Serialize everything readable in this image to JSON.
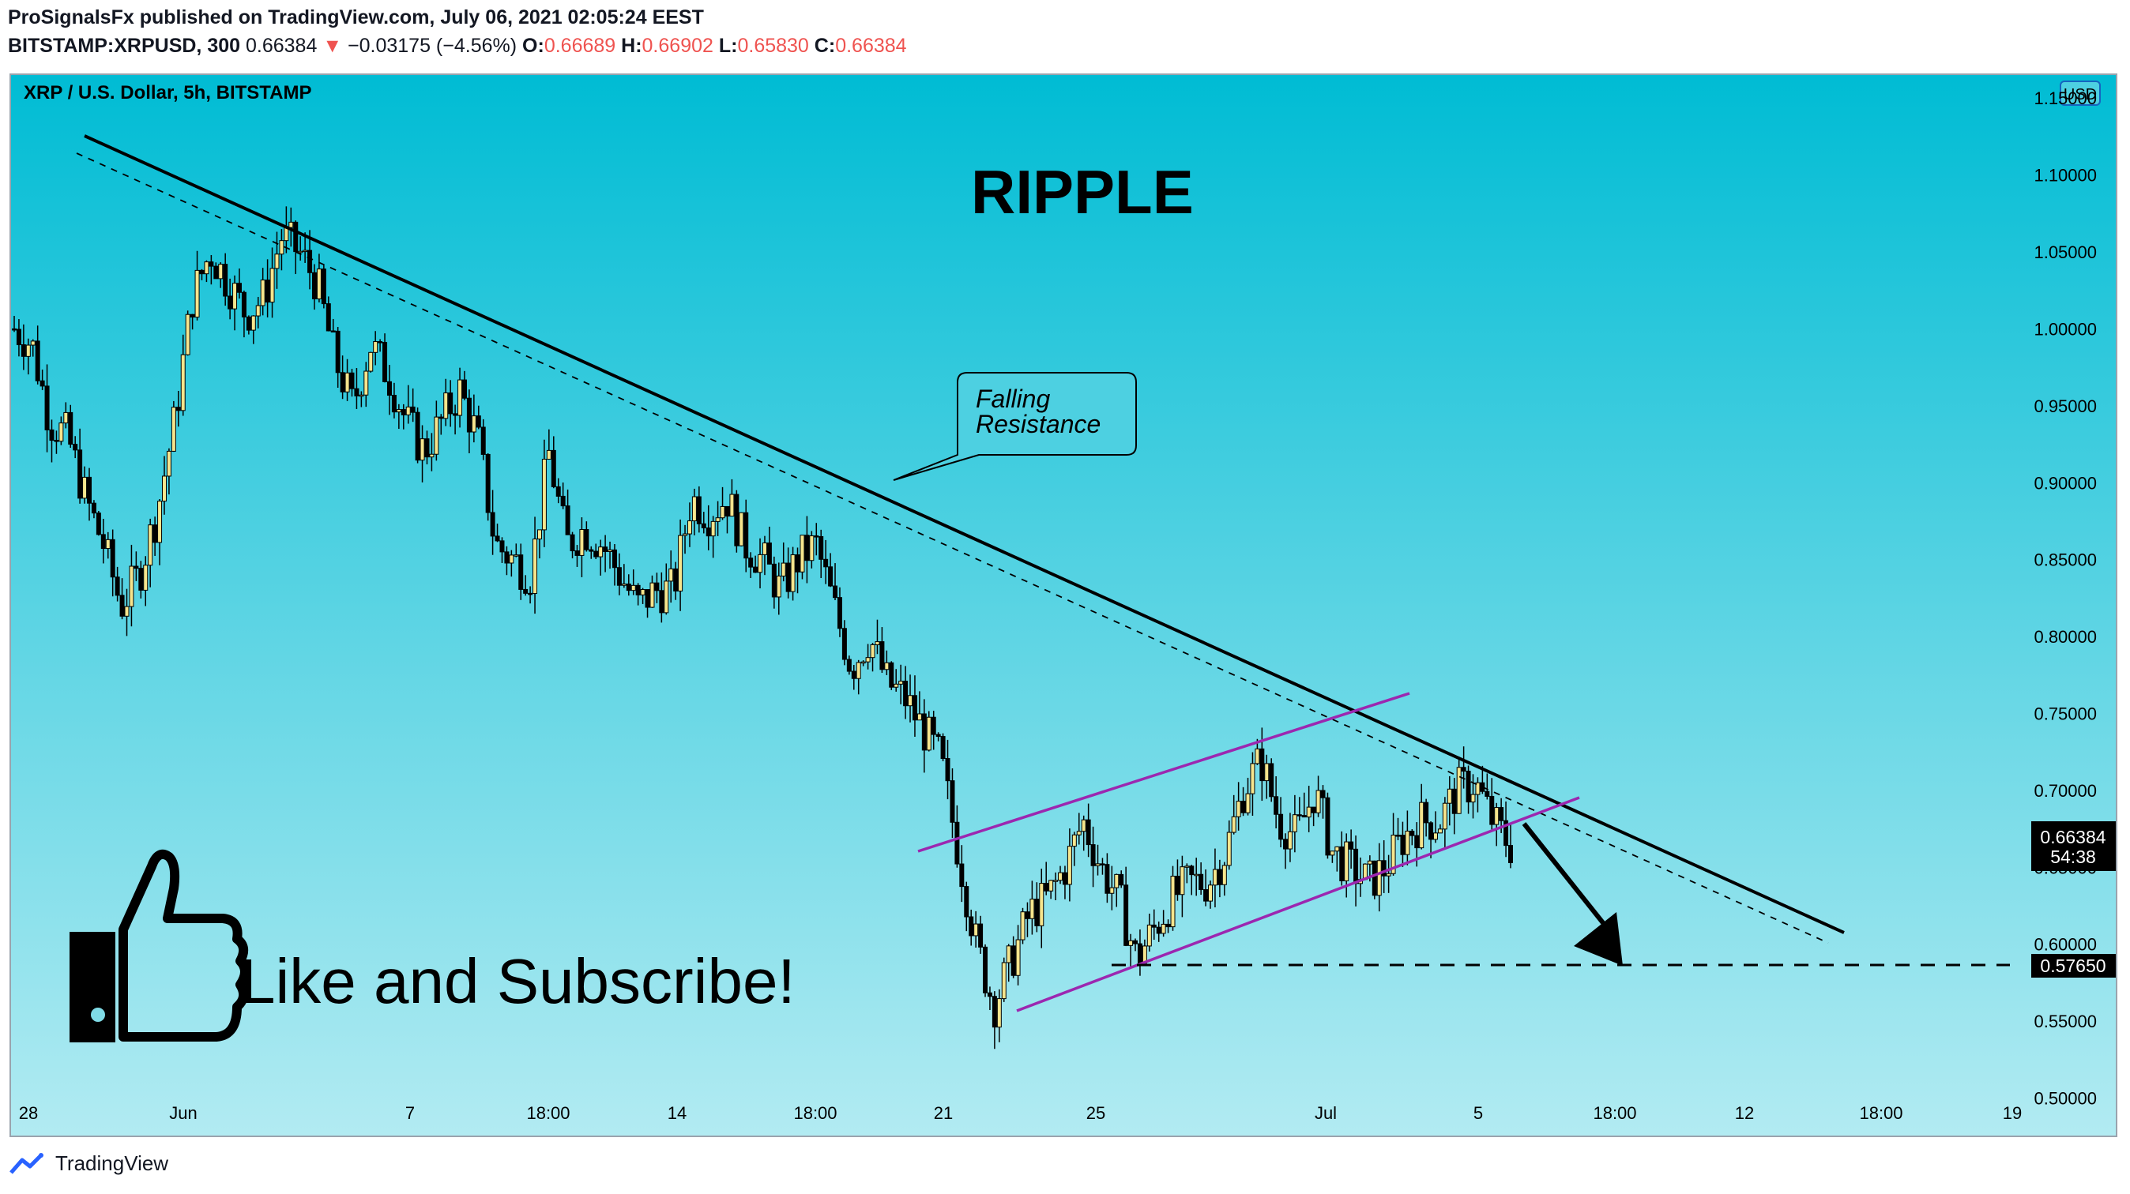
{
  "header": {
    "line1": "ProSignalsFx published on TradingView.com, July 06, 2021 02:05:24 EEST",
    "line2_symbol": "BITSTAMP:XRPUSD, 300",
    "line2_price": "0.66384",
    "line2_arrow": "▼",
    "line2_change": "−0.03175 (−4.56%)",
    "o_label": "O:",
    "o_value": "0.66689",
    "h_label": "H:",
    "h_value": "0.66902",
    "l_label": "L:",
    "l_value": "0.65830",
    "c_label": "C:",
    "c_value": "0.66384"
  },
  "footer": {
    "brand": "TradingView"
  },
  "chart_data": {
    "type": "candlestick",
    "symbol_title": "XRP / U.S. Dollar, 5h, BITSTAMP",
    "currency_badge": "USD",
    "title": "RIPPLE",
    "annotation": "Falling\nResistance",
    "promo_text": "Like and Subscribe!",
    "ylim": [
      0.49,
      1.165
    ],
    "y_ticks": [
      "1.15000",
      "1.10000",
      "1.05000",
      "1.00000",
      "0.95000",
      "0.90000",
      "0.85000",
      "0.80000",
      "0.75000",
      "0.70000",
      "0.65000",
      "0.60000",
      "0.55000",
      "0.50000"
    ],
    "x_ticks": [
      "28",
      "Jun",
      "7",
      "18:00",
      "14",
      "18:00",
      "21",
      "25",
      "Jul",
      "5",
      "18:00",
      "12",
      "18:00",
      "19"
    ],
    "current_price": "0.66384",
    "countdown": "54:38",
    "target_price": "0.57650",
    "colors": {
      "bg_top": "#00bcd4",
      "bg_bottom": "#b2ebf2",
      "up_candle": "#f6e58d",
      "down_candle": "#000000",
      "channel": "#9c27b0",
      "trendline": "#000000"
    },
    "price_path": [
      1.0,
      0.99,
      0.94,
      0.93,
      0.89,
      0.86,
      0.82,
      0.84,
      0.88,
      0.94,
      1.02,
      1.05,
      1.03,
      1.01,
      1.02,
      1.06,
      1.05,
      1.03,
      0.98,
      0.95,
      0.99,
      0.97,
      0.94,
      0.92,
      0.94,
      0.96,
      0.93,
      0.86,
      0.85,
      0.84,
      0.92,
      0.86,
      0.87,
      0.86,
      0.84,
      0.82,
      0.83,
      0.83,
      0.89,
      0.88,
      0.89,
      0.86,
      0.85,
      0.83,
      0.85,
      0.86,
      0.82,
      0.78,
      0.8,
      0.77,
      0.76,
      0.74,
      0.72,
      0.66,
      0.6,
      0.56,
      0.59,
      0.62,
      0.63,
      0.65,
      0.68,
      0.65,
      0.63,
      0.59,
      0.61,
      0.63,
      0.64,
      0.64,
      0.66,
      0.7,
      0.72,
      0.68,
      0.67,
      0.7,
      0.66,
      0.65,
      0.64,
      0.65,
      0.67,
      0.68,
      0.68,
      0.7,
      0.705,
      0.68,
      0.664
    ]
  }
}
